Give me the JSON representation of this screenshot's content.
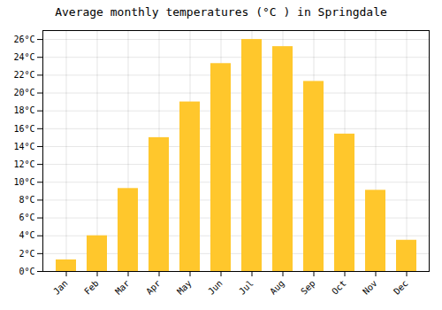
{
  "chart_data": {
    "type": "bar",
    "title": "Average monthly temperatures (°C ) in Springdale",
    "categories": [
      "Jan",
      "Feb",
      "Mar",
      "Apr",
      "May",
      "Jun",
      "Jul",
      "Aug",
      "Sep",
      "Oct",
      "Nov",
      "Dec"
    ],
    "values": [
      1.3,
      4.0,
      9.3,
      15.0,
      19.0,
      23.3,
      26.0,
      25.2,
      21.3,
      15.4,
      9.1,
      3.5
    ],
    "color": "#FFC72C",
    "ylim": [
      0,
      27
    ],
    "yticks": [
      {
        "value": 0,
        "label": "0°C"
      },
      {
        "value": 2,
        "label": "2°C"
      },
      {
        "value": 4,
        "label": "4°C"
      },
      {
        "value": 6,
        "label": "6°C"
      },
      {
        "value": 8,
        "label": "8°C"
      },
      {
        "value": 10,
        "label": "10°C"
      },
      {
        "value": 12,
        "label": "12°C"
      },
      {
        "value": 14,
        "label": "14°C"
      },
      {
        "value": 16,
        "label": "16°C"
      },
      {
        "value": 18,
        "label": "18°C"
      },
      {
        "value": 20,
        "label": "20°C"
      },
      {
        "value": 22,
        "label": "22°C"
      },
      {
        "value": 24,
        "label": "24°C"
      },
      {
        "value": 26,
        "label": "26°C"
      }
    ],
    "grid": true
  }
}
